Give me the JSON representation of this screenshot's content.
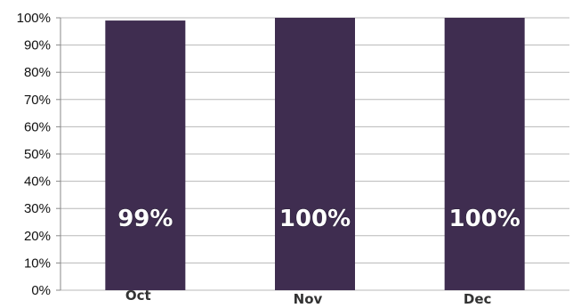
{
  "chart_data": {
    "type": "bar",
    "categories": [
      "Oct",
      "Nov",
      "Dec"
    ],
    "values": [
      99,
      100,
      100
    ],
    "data_labels": [
      "99%",
      "100%",
      "100%"
    ],
    "y_ticks": [
      "0%",
      "10%",
      "20%",
      "30%",
      "40%",
      "50%",
      "60%",
      "70%",
      "80%",
      "90%",
      "100%"
    ],
    "ylim": [
      0,
      100
    ],
    "grid": true,
    "legend": "none",
    "bar_color": "#3f2d50",
    "grid_color": "#b8b8b8"
  }
}
